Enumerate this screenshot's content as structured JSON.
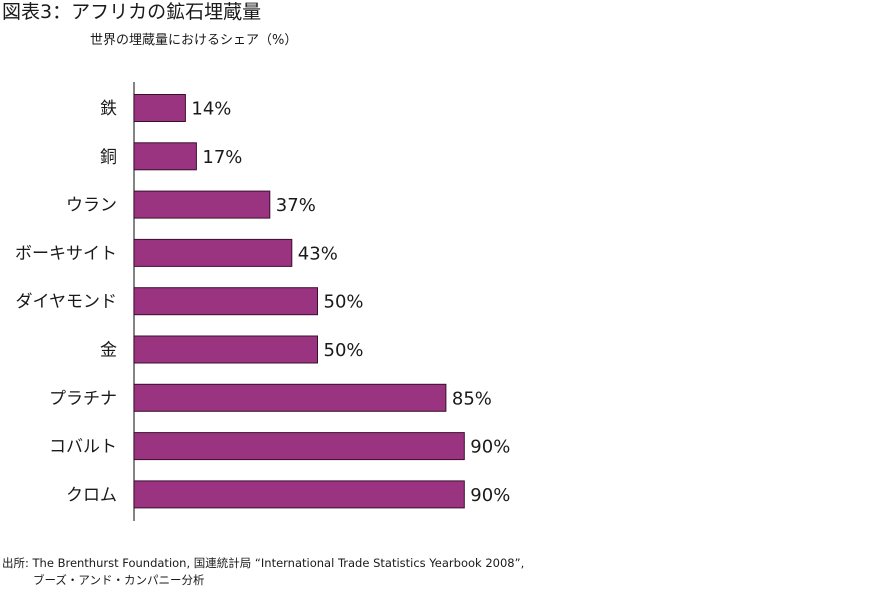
{
  "chart_data": {
    "type": "bar",
    "orientation": "horizontal",
    "title": "図表3：アフリカの鉱石埋蔵量",
    "subtitle": "世界の埋蔵量におけるシェア（%）",
    "categories": [
      "鉄",
      "銅",
      "ウラン",
      "ボーキサイト",
      "ダイヤモンド",
      "金",
      "プラチナ",
      "コバルト",
      "クロム"
    ],
    "values": [
      14,
      17,
      37,
      43,
      50,
      50,
      85,
      90,
      90
    ],
    "value_labels": [
      "14%",
      "17%",
      "37%",
      "43%",
      "50%",
      "50%",
      "85%",
      "90%",
      "90%"
    ],
    "xlim": [
      0,
      100
    ],
    "grid": false,
    "bar_color": "#9b3480",
    "bar_border": "#3a1030"
  },
  "source": {
    "line1": "出所: The Brenthurst Foundation, 国連統計局 “International Trade Statistics Yearbook 2008”,",
    "line2": "ブーズ・アンド・カンパニー分析"
  }
}
